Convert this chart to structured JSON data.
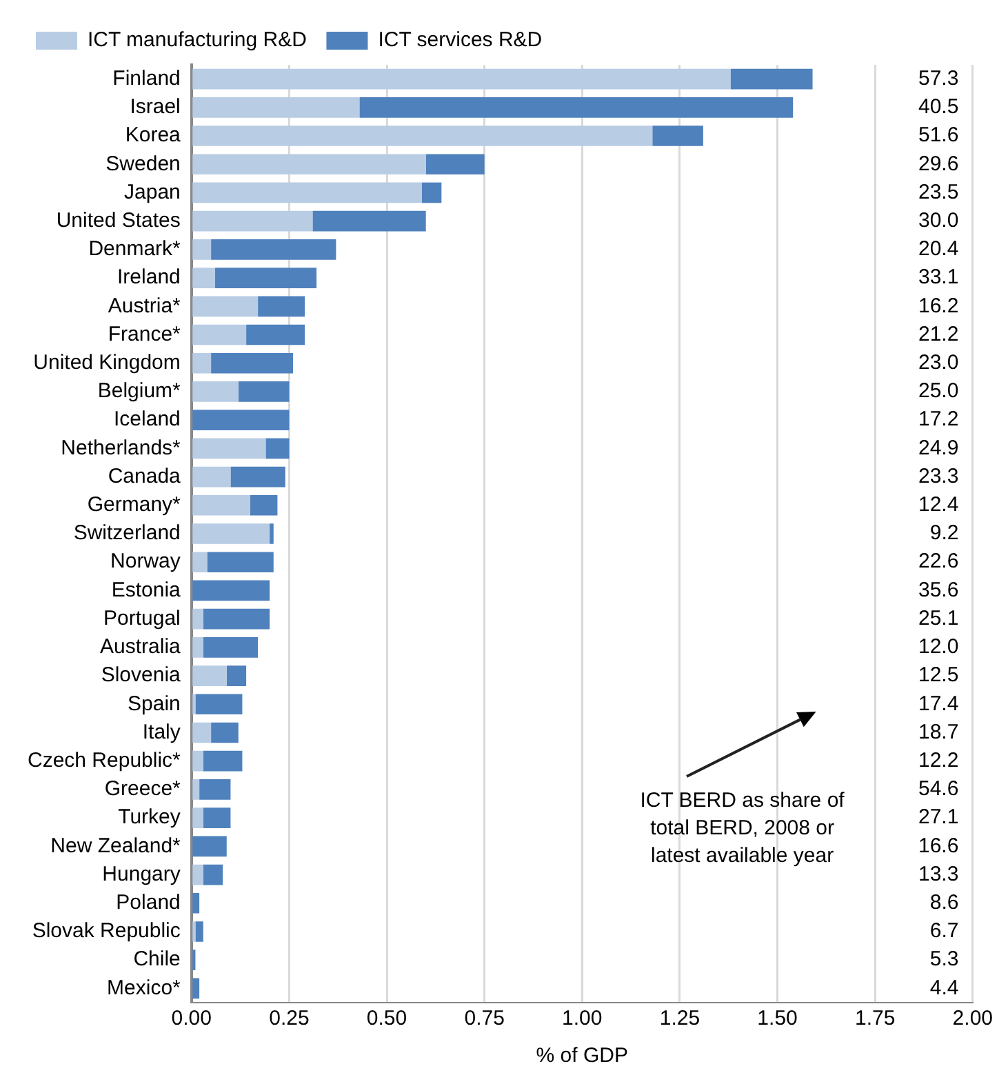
{
  "chart_data": {
    "type": "bar",
    "orientation": "horizontal",
    "stacked": true,
    "categories": [
      "Finland",
      "Israel",
      "Korea",
      "Sweden",
      "Japan",
      "United States",
      "Denmark*",
      "Ireland",
      "Austria*",
      "France*",
      "United Kingdom",
      "Belgium*",
      "Iceland",
      "Netherlands*",
      "Canada",
      "Germany*",
      "Switzerland",
      "Norway",
      "Estonia",
      "Portugal",
      "Australia",
      "Slovenia",
      "Spain",
      "Italy",
      "Czech Republic*",
      "Greece*",
      "Turkey",
      "New Zealand*",
      "Hungary",
      "Poland",
      "Slovak Republic",
      "Chile",
      "Mexico*"
    ],
    "series": [
      {
        "name": "ICT manufacturing R&D",
        "color": "#b8cce4",
        "values": [
          1.38,
          0.43,
          1.18,
          0.6,
          0.59,
          0.31,
          0.05,
          0.06,
          0.17,
          0.14,
          0.05,
          0.12,
          0,
          0.19,
          0.1,
          0.15,
          0.2,
          0.04,
          0,
          0.03,
          0.03,
          0.09,
          0.01,
          0.05,
          0.03,
          0.02,
          0.03,
          0,
          0.03,
          0,
          0.01,
          0,
          0
        ]
      },
      {
        "name": "ICT services R&D",
        "color": "#4f81bd",
        "values": [
          0.21,
          1.11,
          0.13,
          0.15,
          0.05,
          0.29,
          0.32,
          0.26,
          0.12,
          0.15,
          0.21,
          0.13,
          0.25,
          0.06,
          0.14,
          0.07,
          0.01,
          0.17,
          0.2,
          0.17,
          0.14,
          0.05,
          0.12,
          0.07,
          0.1,
          0.08,
          0.07,
          0.09,
          0.05,
          0.02,
          0.02,
          0.01,
          0.02
        ]
      }
    ],
    "xlabel": "% of GDP",
    "xlim": [
      0,
      2
    ],
    "xticks": [
      {
        "value": 0,
        "label": "0.00"
      },
      {
        "value": 0.25,
        "label": "0.25"
      },
      {
        "value": 0.5,
        "label": "0.50"
      },
      {
        "value": 0.75,
        "label": "0.75"
      },
      {
        "value": 1,
        "label": "1.00"
      },
      {
        "value": 1.25,
        "label": "1.25"
      },
      {
        "value": 1.5,
        "label": "1.50"
      },
      {
        "value": 1.75,
        "label": "1.75"
      },
      {
        "value": 2,
        "label": "2.00"
      }
    ],
    "grid": "x",
    "legend": "top left",
    "annotations": [
      "57.3",
      "40.5",
      "51.6",
      "29.6",
      "23.5",
      "30.0",
      "20.4",
      "33.1",
      "16.2",
      "21.2",
      "23.0",
      "25.0",
      "17.2",
      "24.9",
      "23.3",
      "12.4",
      "9.2",
      "22.6",
      "35.6",
      "25.1",
      "12.0",
      "12.5",
      "17.4",
      "18.7",
      "12.2",
      "54.6",
      "27.1",
      "16.6",
      "13.3",
      "8.6",
      "6.7",
      "5.3",
      "4.4",
      "ICT BERD as share of total BERD, 2008 or latest available year"
    ]
  }
}
